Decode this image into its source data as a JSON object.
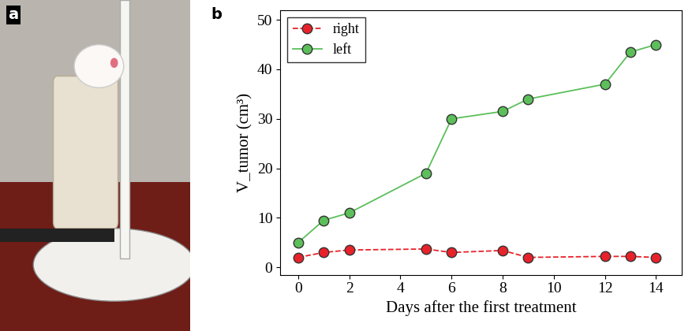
{
  "panels": [
    "a",
    "b"
  ],
  "chart_data": {
    "type": "line",
    "x": [
      0,
      1,
      2,
      5,
      6,
      8,
      9,
      12,
      13,
      14
    ],
    "series": [
      {
        "name": "right",
        "color": "#e8222a",
        "marker": "o",
        "line_style": "dashed",
        "values": [
          2.0,
          3.0,
          3.5,
          3.7,
          3.0,
          3.4,
          2.0,
          2.2,
          2.2,
          2.0
        ]
      },
      {
        "name": "left",
        "color": "#5cbf5a",
        "marker": "o",
        "line_style": "solid",
        "values": [
          5.0,
          9.5,
          11.0,
          19.0,
          30.0,
          31.5,
          34.0,
          37.0,
          43.5,
          45.0
        ]
      }
    ],
    "x_label": "Days after the first treatment",
    "y_label": "V_tumor (cm³)",
    "xlim": [
      -0.7,
      15
    ],
    "xticks": [
      0,
      2,
      4,
      6,
      8,
      10,
      12,
      14
    ],
    "ylim": [
      -1.5,
      52
    ],
    "yticks": [
      0,
      10,
      20,
      30,
      40,
      50
    ],
    "legend": "upper left",
    "grid": false
  }
}
